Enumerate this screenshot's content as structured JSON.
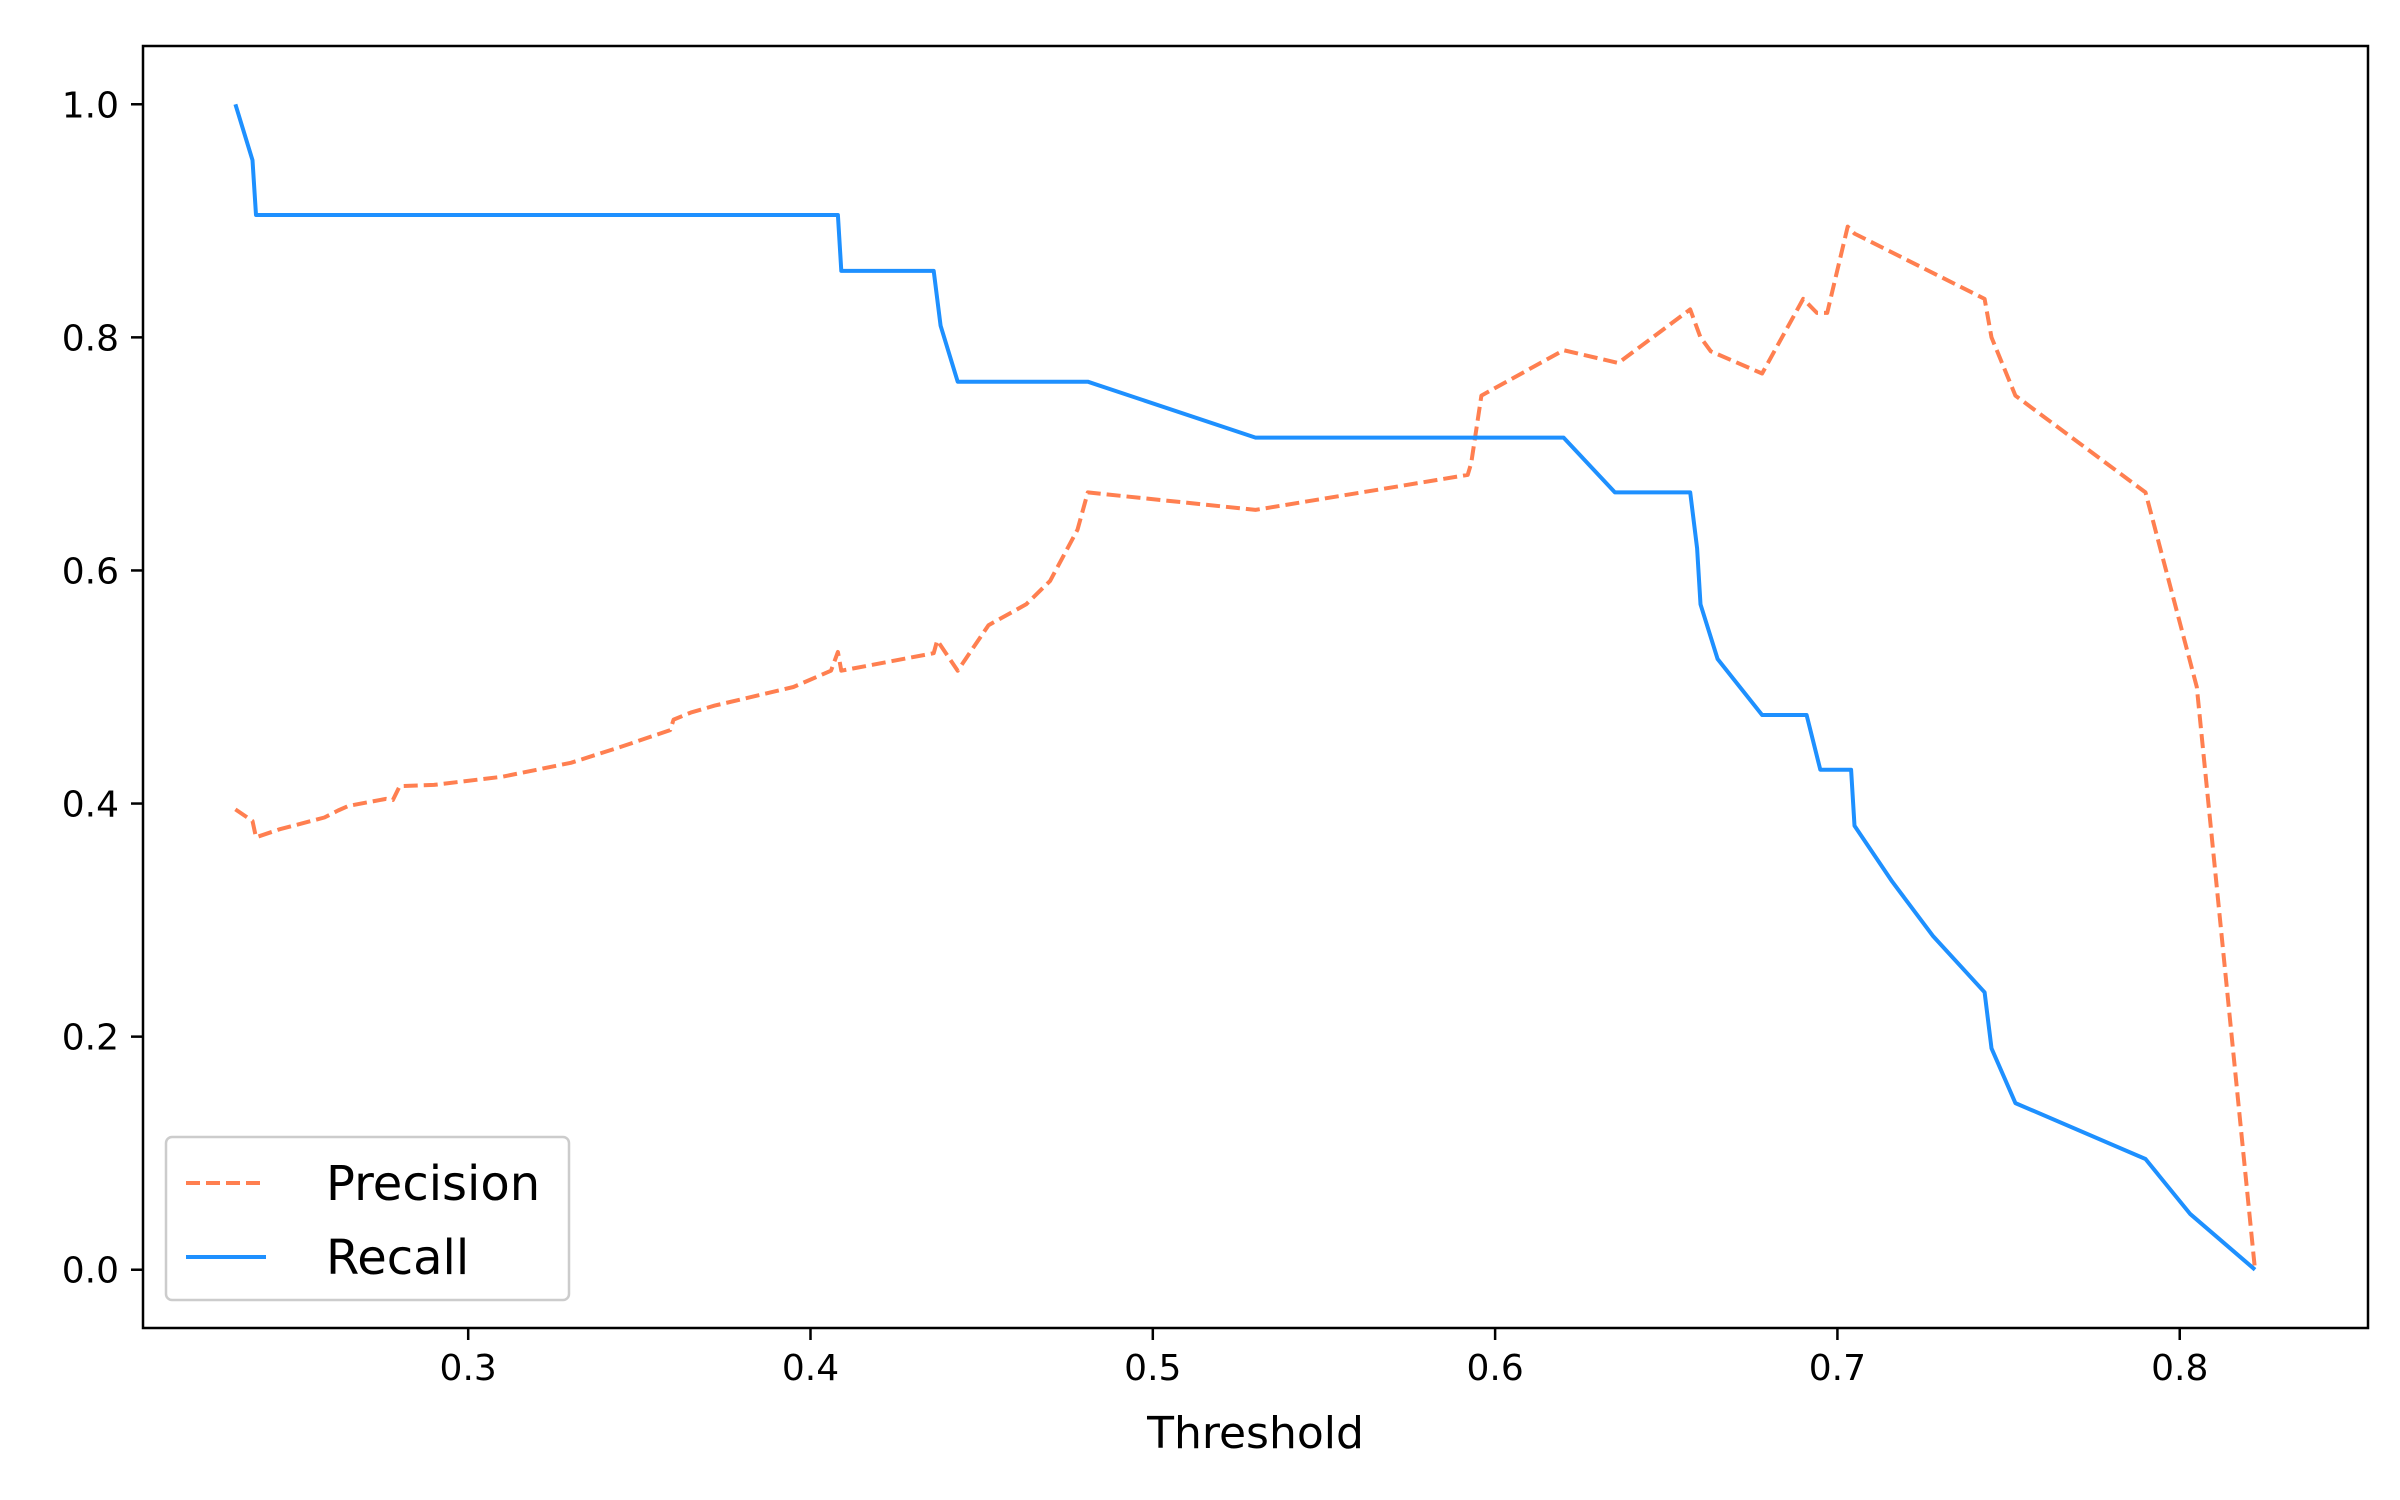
{
  "chart_data": {
    "type": "line",
    "xlabel": "Threshold",
    "ylabel": "",
    "title": "",
    "xlim": [
      0.205,
      0.855
    ],
    "ylim": [
      -0.05,
      1.05
    ],
    "xticks": [
      0.3,
      0.4,
      0.5,
      0.6,
      0.7,
      0.8
    ],
    "xtick_labels": [
      "0.3",
      "0.4",
      "0.5",
      "0.6",
      "0.7",
      "0.8"
    ],
    "yticks": [
      0.0,
      0.2,
      0.4,
      0.6,
      0.8,
      1.0
    ],
    "ytick_labels": [
      "0.0",
      "0.2",
      "0.4",
      "0.6",
      "0.8",
      "1.0"
    ],
    "grid": false,
    "legend_position": "lower-left",
    "series": [
      {
        "name": "Precision",
        "color": "#ff7f50",
        "style": "dashed",
        "x": [
          0.232,
          0.237,
          0.238,
          0.245,
          0.258,
          0.262,
          0.265,
          0.276,
          0.278,
          0.28,
          0.29,
          0.31,
          0.33,
          0.345,
          0.359,
          0.36,
          0.365,
          0.372,
          0.395,
          0.406,
          0.408,
          0.409,
          0.436,
          0.437,
          0.443,
          0.452,
          0.463,
          0.47,
          0.478,
          0.481,
          0.53,
          0.592,
          0.593,
          0.596,
          0.62,
          0.636,
          0.657,
          0.66,
          0.663,
          0.678,
          0.69,
          0.694,
          0.697,
          0.703,
          0.705,
          0.743,
          0.745,
          0.752,
          0.79,
          0.805,
          0.822
        ],
        "y": [
          0.395,
          0.385,
          0.371,
          0.378,
          0.388,
          0.394,
          0.398,
          0.404,
          0.403,
          0.415,
          0.416,
          0.423,
          0.435,
          0.449,
          0.463,
          0.472,
          0.478,
          0.484,
          0.5,
          0.514,
          0.53,
          0.514,
          0.529,
          0.54,
          0.514,
          0.553,
          0.571,
          0.591,
          0.635,
          0.667,
          0.652,
          0.682,
          0.692,
          0.75,
          0.789,
          0.778,
          0.824,
          0.8,
          0.788,
          0.769,
          0.833,
          0.821,
          0.821,
          0.895,
          0.889,
          0.833,
          0.8,
          0.75,
          0.667,
          0.5,
          0.0
        ]
      },
      {
        "name": "Recall",
        "color": "#1e90ff",
        "style": "solid",
        "x": [
          0.232,
          0.237,
          0.238,
          0.408,
          0.409,
          0.436,
          0.438,
          0.443,
          0.481,
          0.53,
          0.62,
          0.635,
          0.657,
          0.659,
          0.66,
          0.665,
          0.678,
          0.691,
          0.695,
          0.704,
          0.705,
          0.716,
          0.728,
          0.743,
          0.745,
          0.752,
          0.79,
          0.803,
          0.822
        ],
        "y": [
          1.0,
          0.952,
          0.905,
          0.905,
          0.857,
          0.857,
          0.81,
          0.762,
          0.762,
          0.714,
          0.714,
          0.667,
          0.667,
          0.619,
          0.571,
          0.524,
          0.476,
          0.476,
          0.429,
          0.429,
          0.381,
          0.333,
          0.286,
          0.238,
          0.19,
          0.143,
          0.095,
          0.048,
          0.0
        ]
      }
    ]
  }
}
